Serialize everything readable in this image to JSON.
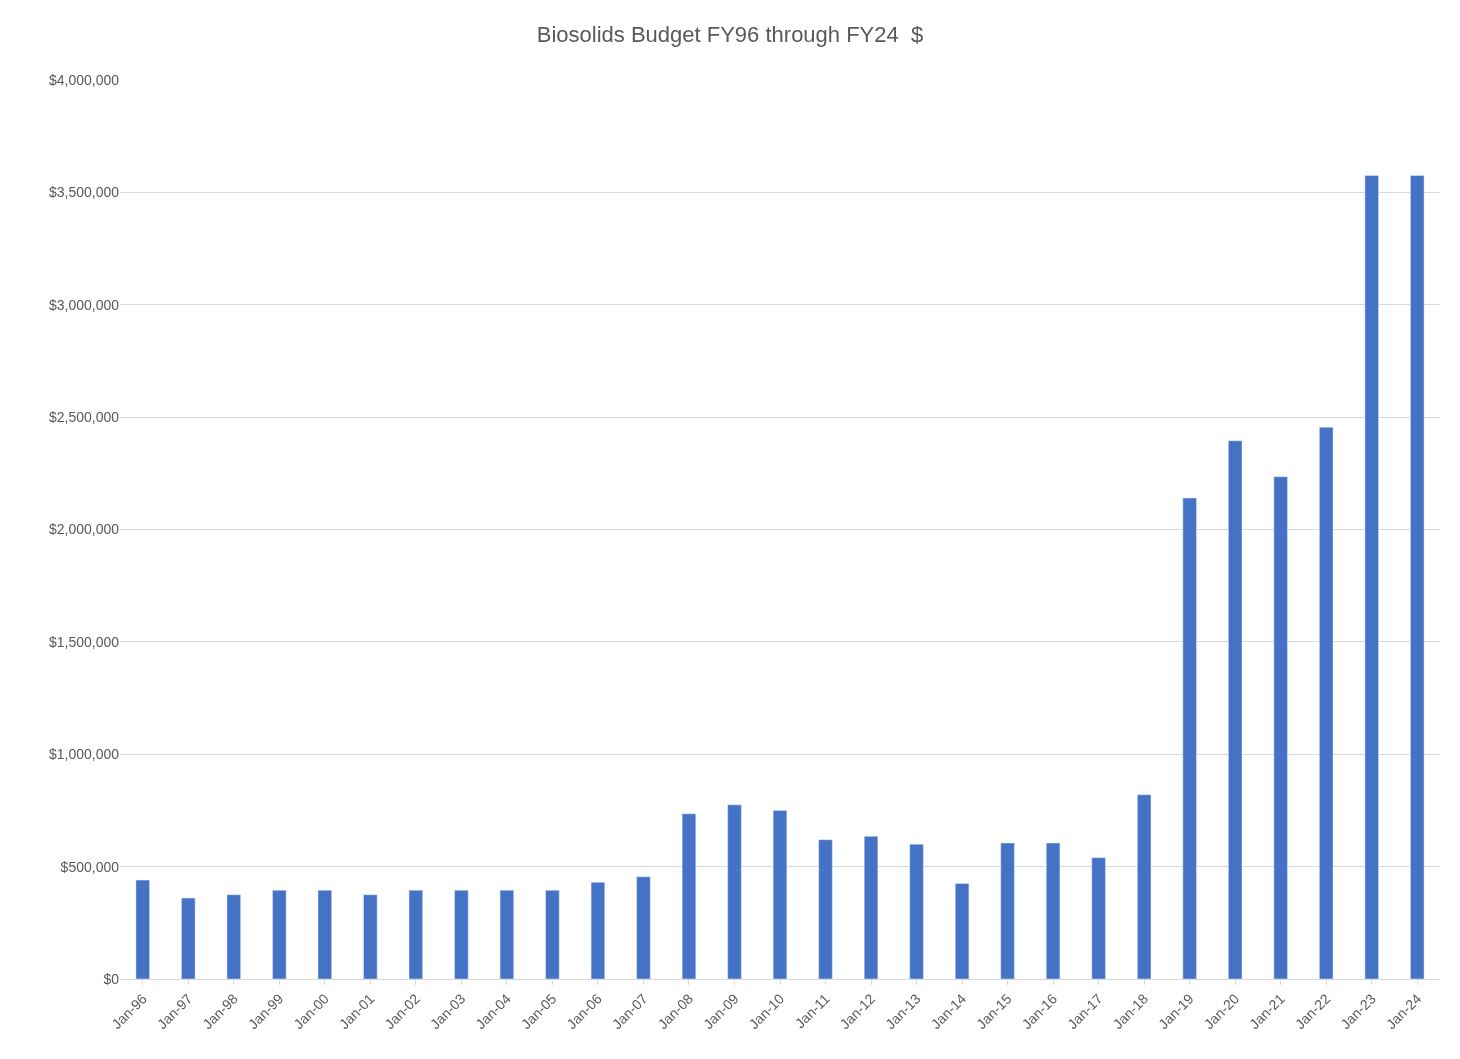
{
  "chart_data": {
    "type": "bar",
    "title": "Biosolids Budget FY96 through FY24  $",
    "categories": [
      "Jan-96",
      "Jan-97",
      "Jan-98",
      "Jan-99",
      "Jan-00",
      "Jan-01",
      "Jan-02",
      "Jan-03",
      "Jan-04",
      "Jan-05",
      "Jan-06",
      "Jan-07",
      "Jan-08",
      "Jan-09",
      "Jan-10",
      "Jan-11",
      "Jan-12",
      "Jan-13",
      "Jan-14",
      "Jan-15",
      "Jan-16",
      "Jan-17",
      "Jan-18",
      "Jan-19",
      "Jan-20",
      "Jan-21",
      "Jan-22",
      "Jan-23",
      "Jan-24"
    ],
    "values": [
      440000,
      360000,
      375000,
      395000,
      395000,
      375000,
      395000,
      395000,
      395000,
      395000,
      430000,
      455000,
      735000,
      775000,
      750000,
      620000,
      635000,
      600000,
      425000,
      605000,
      605000,
      540000,
      820000,
      2140000,
      2395000,
      2235000,
      2455000,
      3575000,
      3575000
    ],
    "color": "#4472c4",
    "ylim": [
      0,
      4000000
    ],
    "yticks": [
      {
        "value": 0,
        "label": "$0"
      },
      {
        "value": 500000,
        "label": "$500,000"
      },
      {
        "value": 1000000,
        "label": "$1,000,000"
      },
      {
        "value": 1500000,
        "label": "$1,500,000"
      },
      {
        "value": 2000000,
        "label": "$2,000,000"
      },
      {
        "value": 2500000,
        "label": "$2,500,000"
      },
      {
        "value": 3000000,
        "label": "$3,000,000"
      },
      {
        "value": 3500000,
        "label": "$3,500,000"
      },
      {
        "value": 4000000,
        "label": "$4,000,000"
      }
    ],
    "grid": "y"
  }
}
